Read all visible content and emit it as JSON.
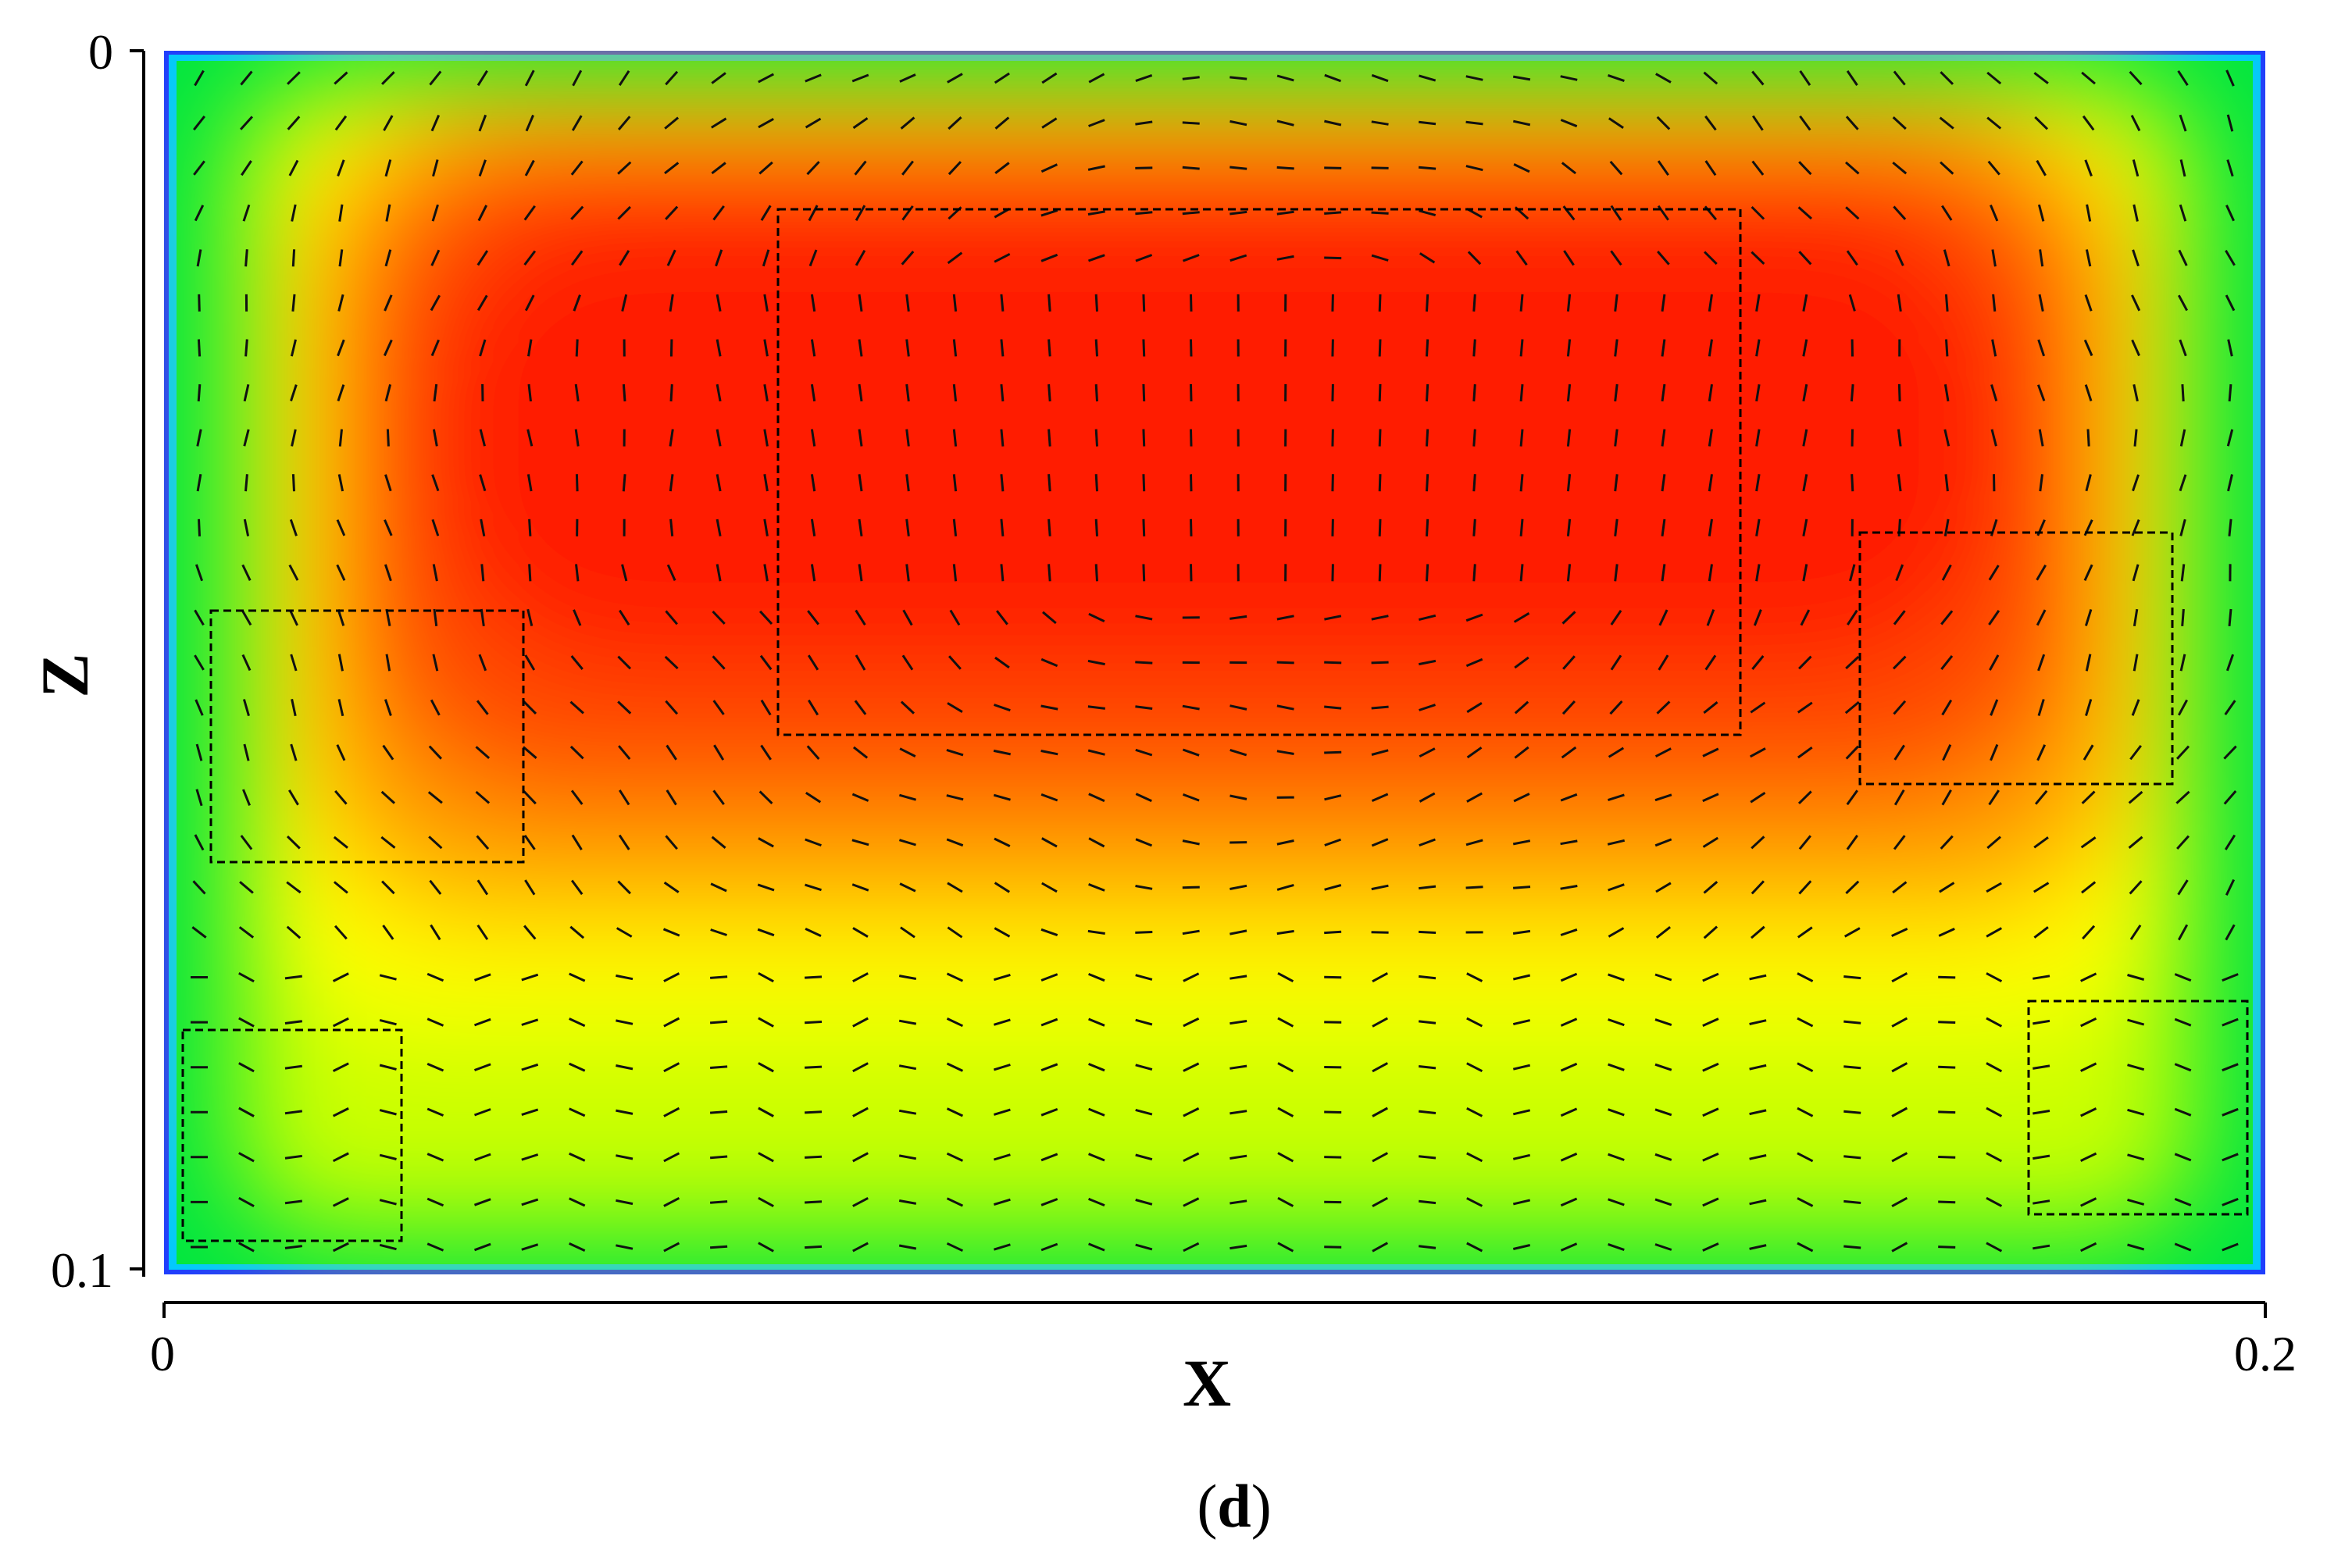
{
  "chart_data": {
    "type": "heatmap",
    "description_visible": "contour field with velocity vectors",
    "xlabel": "X",
    "ylabel": "Z",
    "xlim": [
      0,
      0.2
    ],
    "zlim": [
      0,
      0.1
    ],
    "z_axis_inverted": true,
    "x_ticks": [
      "0",
      "0.2"
    ],
    "z_ticks": [
      "0",
      "0.1"
    ],
    "panel_caption_letter": "d",
    "colormap": [
      "#1e3cff",
      "#00c8ff",
      "#00e640",
      "#c8ff00",
      "#ffff00",
      "#ffa500",
      "#ff5000",
      "#ff1a00"
    ],
    "field_peak": {
      "x": 0.1,
      "z": 0.033
    },
    "highlight_regions": [
      {
        "name": "center-box",
        "x": [
          0.058,
          0.15
        ],
        "z": [
          0.013,
          0.056
        ]
      },
      {
        "name": "left-mid-box",
        "x": [
          0.004,
          0.034
        ],
        "z": [
          0.046,
          0.066
        ]
      },
      {
        "name": "right-mid-box",
        "x": [
          0.162,
          0.192
        ],
        "z": [
          0.039,
          0.06
        ]
      },
      {
        "name": "left-bottom-box",
        "x": [
          0.002,
          0.023
        ],
        "z": [
          0.08,
          0.098
        ]
      },
      {
        "name": "right-bottom-box",
        "x": [
          0.178,
          0.199
        ],
        "z": [
          0.078,
          0.095
        ]
      }
    ]
  }
}
